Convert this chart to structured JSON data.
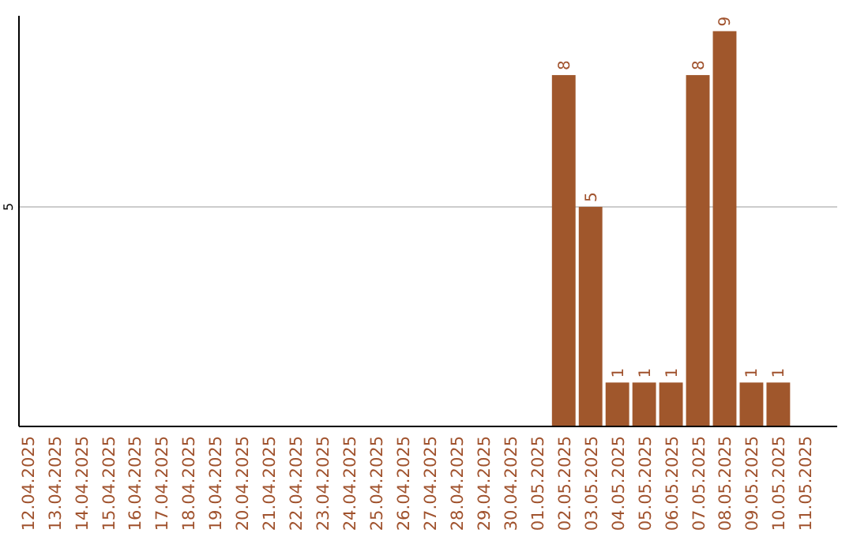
{
  "chart_data": {
    "type": "bar",
    "categories": [
      "12.04.2025",
      "13.04.2025",
      "14.04.2025",
      "15.04.2025",
      "16.04.2025",
      "17.04.2025",
      "18.04.2025",
      "19.04.2025",
      "20.04.2025",
      "21.04.2025",
      "22.04.2025",
      "23.04.2025",
      "24.04.2025",
      "25.04.2025",
      "26.04.2025",
      "27.04.2025",
      "28.04.2025",
      "29.04.2025",
      "30.04.2025",
      "01.05.2025",
      "02.05.2025",
      "03.05.2025",
      "04.05.2025",
      "05.05.2025",
      "06.05.2025",
      "07.05.2025",
      "08.05.2025",
      "09.05.2025",
      "10.05.2025",
      "11.05.2025"
    ],
    "values": [
      null,
      null,
      null,
      null,
      null,
      null,
      null,
      null,
      null,
      null,
      null,
      null,
      null,
      null,
      null,
      null,
      null,
      null,
      null,
      null,
      8,
      5,
      1,
      1,
      1,
      8,
      9,
      1,
      1,
      null
    ],
    "data_labels": true,
    "color": "#a0572c",
    "ylim": [
      0,
      9.35
    ],
    "ref_lines": [
      {
        "axis": "y",
        "value": 5,
        "label": "5",
        "color": "#cccccc"
      }
    ]
  }
}
